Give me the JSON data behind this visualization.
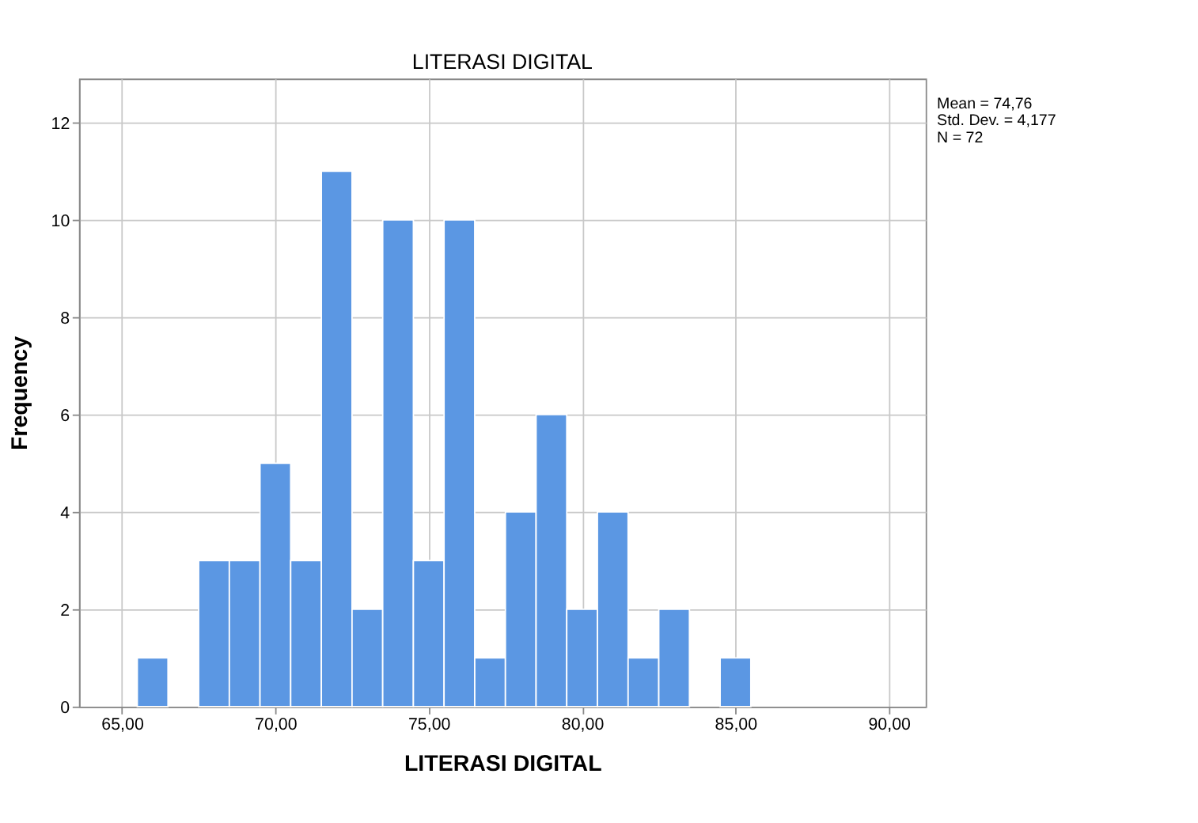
{
  "chart_data": {
    "type": "histogram",
    "title": "LITERASI DIGITAL",
    "xlabel": "LITERASI DIGITAL",
    "ylabel": "Frequency",
    "bins": [
      65.5,
      66.5,
      67.5,
      68.5,
      69.5,
      70.5,
      71.5,
      72.5,
      73.5,
      74.5,
      75.5,
      76.5,
      77.5,
      78.5,
      79.5,
      80.5,
      81.5,
      82.5,
      83.5,
      84.5,
      85.5
    ],
    "values": [
      1,
      0,
      3,
      3,
      5,
      3,
      11,
      2,
      10,
      3,
      10,
      1,
      4,
      6,
      2,
      4,
      1,
      2,
      0,
      1
    ],
    "color": "#5b97e3",
    "xlim": [
      63.6,
      91.2
    ],
    "xticks": [
      {
        "value": 65,
        "label": "65,00"
      },
      {
        "value": 70,
        "label": "70,00"
      },
      {
        "value": 75,
        "label": "75,00"
      },
      {
        "value": 80,
        "label": "80,00"
      },
      {
        "value": 85,
        "label": "85,00"
      },
      {
        "value": 90,
        "label": "90,00"
      }
    ],
    "ylim": [
      0,
      12.9
    ],
    "yticks": [
      0,
      2,
      4,
      6,
      8,
      10,
      12
    ],
    "grid": true,
    "annotations": [
      "Mean = 74,76",
      "Std. Dev. = 4,177",
      "N = 72"
    ]
  }
}
